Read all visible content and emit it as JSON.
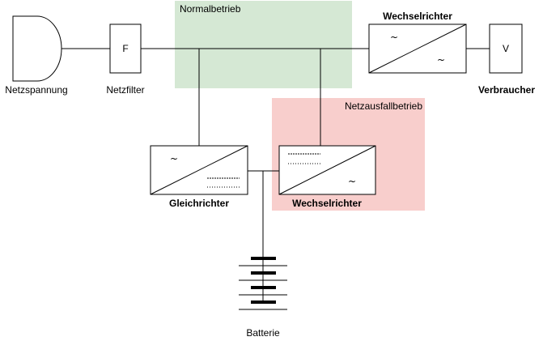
{
  "zones": {
    "normal": {
      "label": "Normalbetrieb",
      "color": "#d5e8d4"
    },
    "outage": {
      "label": "Netzausfallbetrieb",
      "color": "#f8cecc"
    }
  },
  "components": {
    "source": {
      "label": "Netzspannung"
    },
    "filter": {
      "label": "Netzfilter",
      "symbol": "F"
    },
    "main_inverter": {
      "label": "Wechselrichter",
      "ac_symbol": "~",
      "ac_symbol_2": "~"
    },
    "consumer": {
      "label": "Verbraucher",
      "symbol": "V"
    },
    "rectifier": {
      "label": "Gleichrichter",
      "ac_symbol": "~"
    },
    "backup_inverter": {
      "label": "Wechselrichter",
      "ac_symbol": "~"
    },
    "battery": {
      "label": "Batterie"
    }
  }
}
